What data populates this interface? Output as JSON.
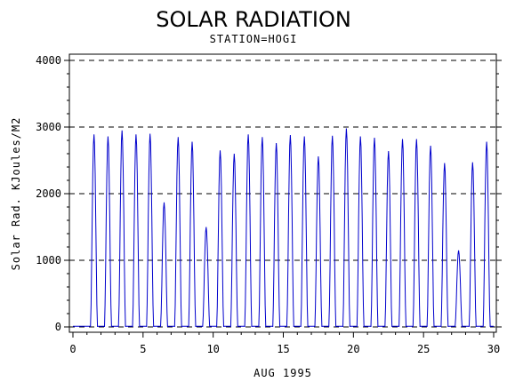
{
  "chart_data": {
    "type": "line",
    "title": "SOLAR RADIATION",
    "subtitle": "STATION=HOGI",
    "xlabel": "AUG 1995",
    "ylabel": "Solar Rad. KJoules/M2",
    "xlim": [
      0,
      30
    ],
    "ylim": [
      0,
      4000
    ],
    "x_ticks": [
      0,
      5,
      10,
      15,
      20,
      25,
      30
    ],
    "y_ticks": [
      0,
      1000,
      2000,
      3000,
      4000
    ],
    "grid": "horizontal-dashed",
    "legend": "none",
    "colors": {
      "line": "#0000cc",
      "axis": "#000000",
      "grid": "#000000"
    },
    "series": [
      {
        "daily_peaks": [
          {
            "day": 1,
            "peak": 2890
          },
          {
            "day": 2,
            "peak": 2860
          },
          {
            "day": 3,
            "peak": 2950
          },
          {
            "day": 4,
            "peak": 2890
          },
          {
            "day": 5,
            "peak": 2900
          },
          {
            "day": 6,
            "peak": 1870
          },
          {
            "day": 7,
            "peak": 2850
          },
          {
            "day": 8,
            "peak": 2780
          },
          {
            "day": 9,
            "peak": 1500
          },
          {
            "day": 10,
            "peak": 2650
          },
          {
            "day": 11,
            "peak": 2600
          },
          {
            "day": 12,
            "peak": 2890
          },
          {
            "day": 13,
            "peak": 2850
          },
          {
            "day": 14,
            "peak": 2760
          },
          {
            "day": 15,
            "peak": 2880
          },
          {
            "day": 16,
            "peak": 2860
          },
          {
            "day": 17,
            "peak": 2560
          },
          {
            "day": 18,
            "peak": 2870
          },
          {
            "day": 19,
            "peak": 2980
          },
          {
            "day": 20,
            "peak": 2860
          },
          {
            "day": 21,
            "peak": 2840
          },
          {
            "day": 22,
            "peak": 2640
          },
          {
            "day": 23,
            "peak": 2820
          },
          {
            "day": 24,
            "peak": 2820
          },
          {
            "day": 25,
            "peak": 2720
          },
          {
            "day": 26,
            "peak": 2460
          },
          {
            "day": 27,
            "peak": 1150
          },
          {
            "day": 28,
            "peak": 2470
          },
          {
            "day": 29,
            "peak": 2780
          }
        ]
      }
    ]
  }
}
